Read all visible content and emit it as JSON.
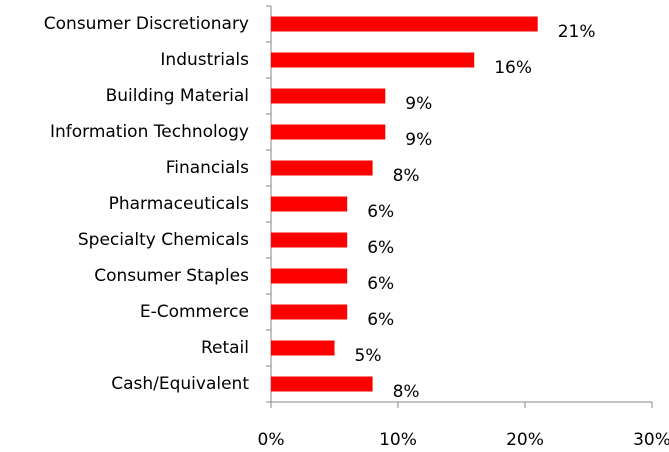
{
  "chart_data": {
    "type": "bar",
    "orientation": "horizontal",
    "color": "#ff0000",
    "categories": [
      "Consumer Discretionary",
      "Industrials",
      "Building Material",
      "Information Technology",
      "Financials",
      "Pharmaceuticals",
      "Specialty Chemicals",
      "Consumer Staples",
      "E-Commerce",
      "Retail",
      "Cash/Equivalent"
    ],
    "values": [
      21,
      16,
      9,
      9,
      8,
      6,
      6,
      6,
      6,
      5,
      8
    ],
    "value_labels": [
      "21%",
      "16%",
      "9%",
      "9%",
      "8%",
      "6%",
      "6%",
      "6%",
      "6%",
      "5%",
      "8%"
    ],
    "xlim": [
      0,
      30
    ],
    "xticks": [
      {
        "value": 0,
        "label": "0%"
      },
      {
        "value": 10,
        "label": "10%"
      },
      {
        "value": 20,
        "label": "20%"
      },
      {
        "value": 30,
        "label": "30%"
      }
    ],
    "grid": false
  }
}
